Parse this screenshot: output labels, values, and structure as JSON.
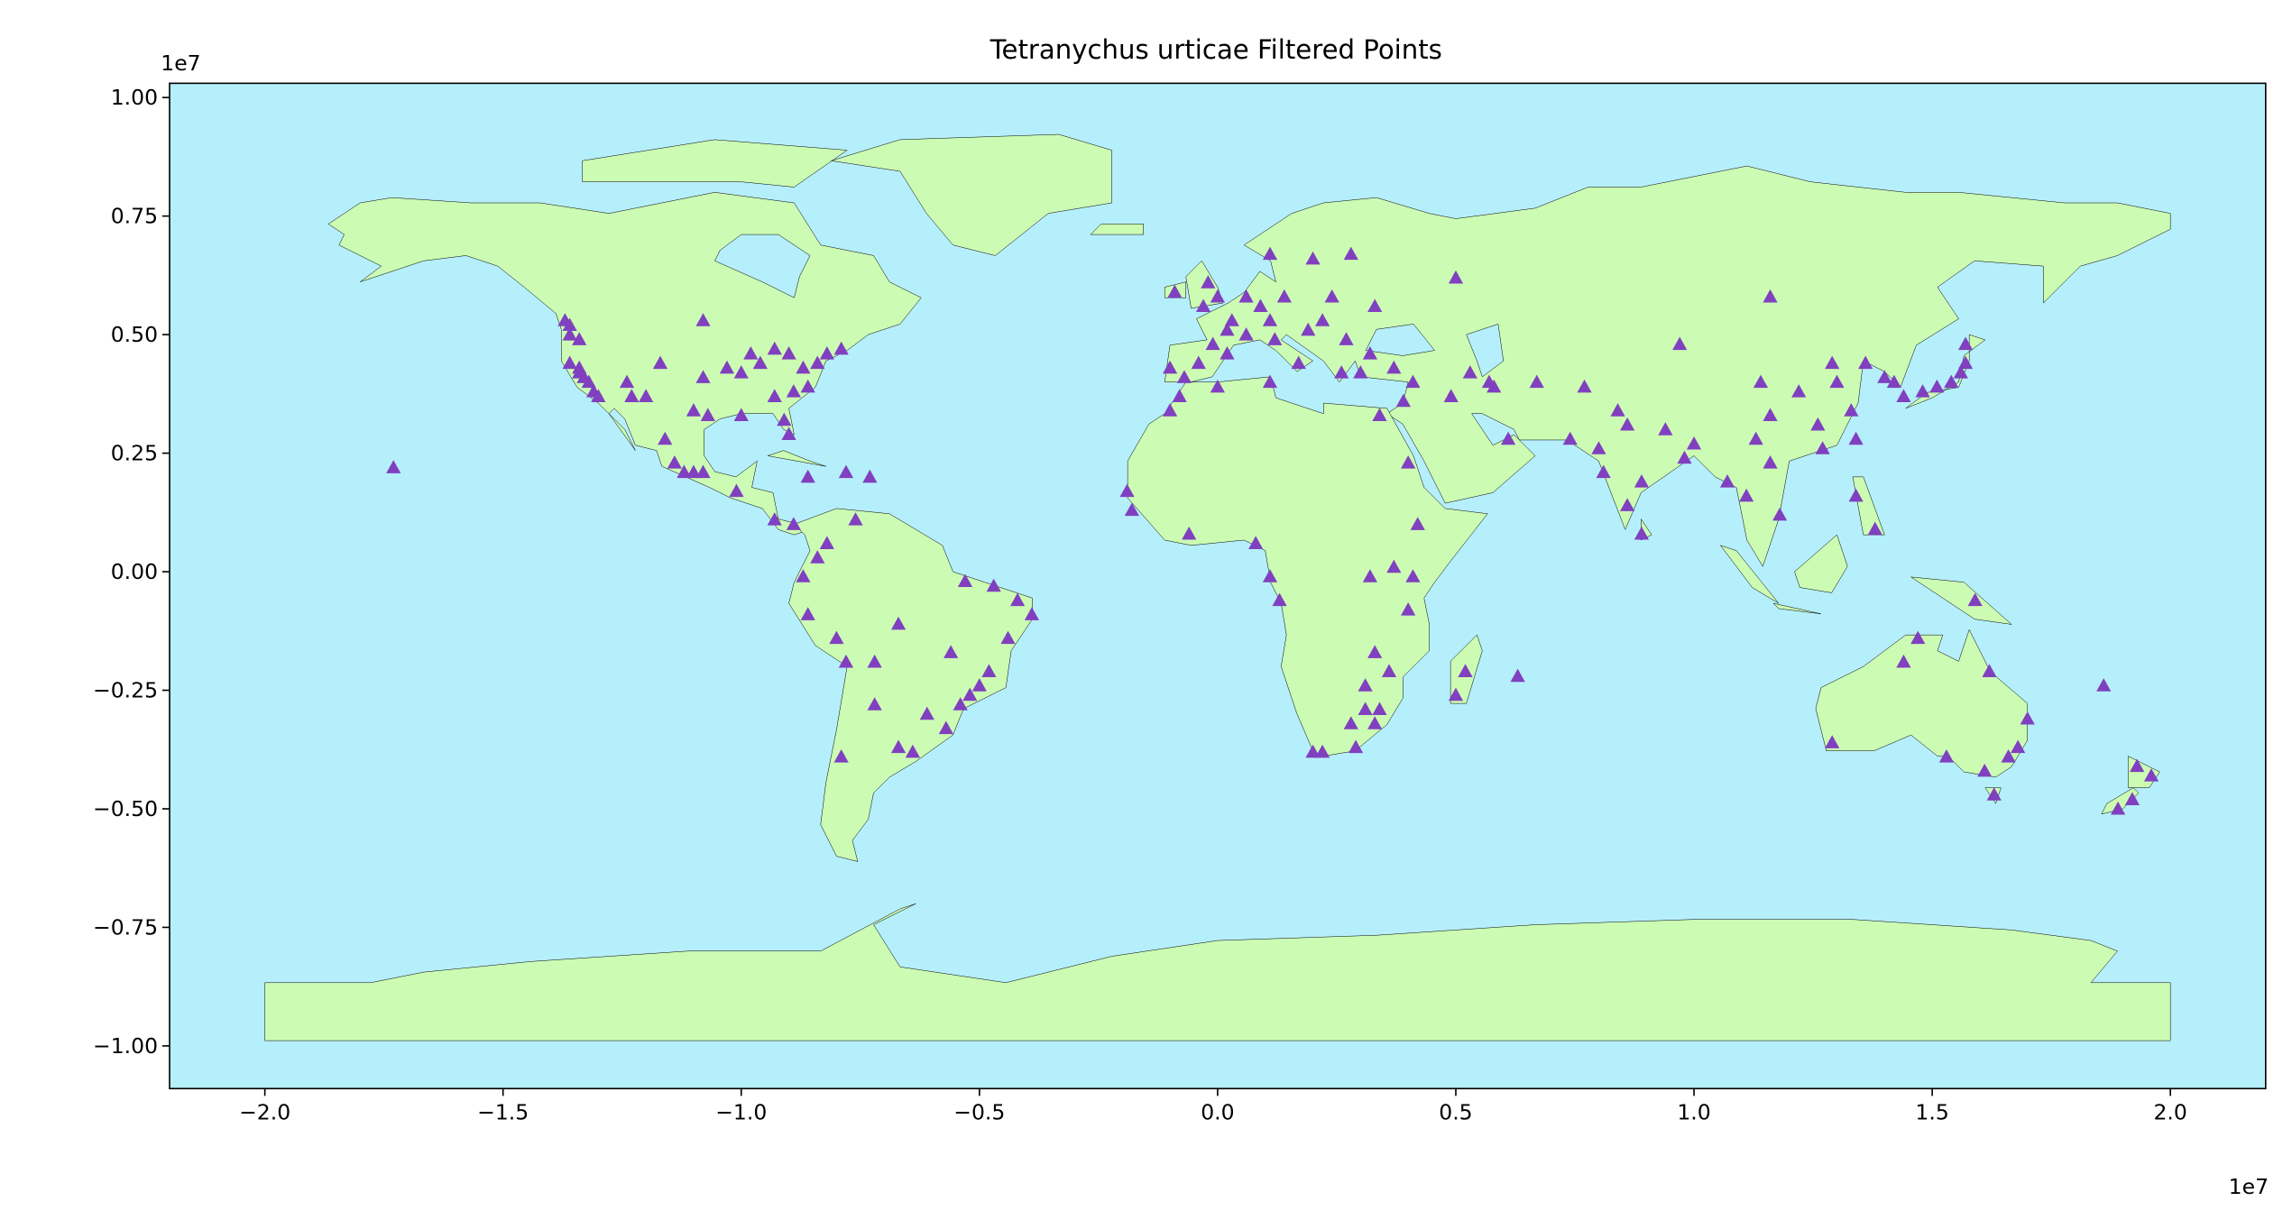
{
  "chart_data": {
    "type": "scatter",
    "title": "Tetranychus urticae Filtered Points",
    "x_offset_label": "1e7",
    "y_offset_label": "1e7",
    "color": "#8040bf",
    "marker": "triangle",
    "background": "#b6effc",
    "land_color": "#ccfcb4",
    "xlim": [
      -2.2,
      2.2
    ],
    "ylim": [
      -1.09,
      1.03
    ],
    "xticks": [
      {
        "value": -2.0,
        "label": "−2.0"
      },
      {
        "value": -1.5,
        "label": "−1.5"
      },
      {
        "value": -1.0,
        "label": "−1.0"
      },
      {
        "value": -0.5,
        "label": "−0.5"
      },
      {
        "value": 0.0,
        "label": "0.0"
      },
      {
        "value": 0.5,
        "label": "0.5"
      },
      {
        "value": 1.0,
        "label": "1.0"
      },
      {
        "value": 1.5,
        "label": "1.5"
      },
      {
        "value": 2.0,
        "label": "2.0"
      }
    ],
    "yticks": [
      {
        "value": -1.0,
        "label": "−1.00"
      },
      {
        "value": -0.75,
        "label": "−0.75"
      },
      {
        "value": -0.5,
        "label": "−0.50"
      },
      {
        "value": -0.25,
        "label": "−0.25"
      },
      {
        "value": 0.0,
        "label": "0.00"
      },
      {
        "value": 0.25,
        "label": "0.25"
      },
      {
        "value": 0.5,
        "label": "0.50"
      },
      {
        "value": 0.75,
        "label": "0.75"
      },
      {
        "value": 1.0,
        "label": "1.00"
      }
    ],
    "x": [
      -1.37,
      -1.36,
      -1.36,
      -1.34,
      -1.36,
      -1.34,
      -1.33,
      -1.32,
      -1.31,
      -1.3,
      -1.34,
      -1.24,
      -1.23,
      -1.2,
      -1.17,
      -1.08,
      -1.03,
      -1.0,
      -0.98,
      -0.96,
      -0.93,
      -0.9,
      -0.87,
      -0.84,
      -0.82,
      -0.79,
      -0.86,
      -0.89,
      -0.93,
      -0.91,
      -0.9,
      -1.0,
      -1.07,
      -1.1,
      -1.08,
      -1.14,
      -1.12,
      -1.1,
      -1.08,
      -1.16,
      -1.01,
      -0.93,
      -0.89,
      -0.86,
      -0.78,
      -0.73,
      -1.73,
      -0.82,
      -0.84,
      -0.87,
      -0.86,
      -0.8,
      -0.78,
      -0.72,
      -0.67,
      -0.53,
      -0.47,
      -0.42,
      -0.39,
      -0.44,
      -0.48,
      -0.5,
      -0.52,
      -0.54,
      -0.57,
      -0.61,
      -0.64,
      -0.67,
      -0.72,
      -0.79,
      -0.56,
      -0.76,
      -0.1,
      -0.04,
      -0.07,
      0.02,
      -0.01,
      0.02,
      0.06,
      0.03,
      -0.03,
      0.0,
      -0.02,
      0.06,
      0.09,
      0.11,
      0.14,
      0.12,
      0.17,
      0.19,
      0.22,
      0.27,
      0.26,
      0.3,
      0.32,
      0.37,
      0.24,
      0.2,
      0.11,
      0.28,
      0.33,
      0.5,
      -0.09,
      -0.1,
      -0.08,
      0.0,
      0.11,
      0.34,
      0.39,
      0.41,
      0.49,
      0.58,
      0.53,
      0.61,
      0.57,
      0.67,
      0.77,
      -0.19,
      -0.18,
      -0.06,
      0.08,
      0.11,
      0.13,
      0.32,
      0.37,
      0.41,
      0.4,
      0.33,
      0.31,
      0.34,
      0.31,
      0.28,
      0.22,
      0.2,
      0.29,
      0.33,
      0.36,
      0.5,
      0.52,
      0.63,
      0.42,
      0.4,
      0.8,
      0.81,
      0.86,
      0.86,
      0.89,
      0.98,
      1.0,
      0.94,
      0.84,
      0.74,
      0.89,
      1.07,
      1.11,
      1.18,
      1.16,
      1.27,
      1.26,
      1.22,
      1.16,
      1.3,
      1.33,
      1.34,
      1.4,
      1.42,
      1.44,
      1.48,
      1.51,
      1.54,
      1.56,
      1.57,
      1.57,
      1.36,
      1.29,
      1.14,
      1.13,
      1.34,
      1.38,
      1.16,
      0.97,
      1.29,
      1.47,
      1.44,
      1.53,
      1.61,
      1.63,
      1.66,
      1.68,
      1.7,
      1.62,
      1.59,
      1.86,
      1.93,
      1.96,
      1.92,
      1.89
    ],
    "values": [
      0.53,
      0.52,
      0.5,
      0.49,
      0.44,
      0.42,
      0.41,
      0.4,
      0.38,
      0.37,
      0.43,
      0.4,
      0.37,
      0.37,
      0.44,
      0.41,
      0.43,
      0.42,
      0.46,
      0.44,
      0.47,
      0.46,
      0.43,
      0.44,
      0.46,
      0.47,
      0.39,
      0.38,
      0.37,
      0.32,
      0.29,
      0.33,
      0.33,
      0.34,
      0.53,
      0.23,
      0.21,
      0.21,
      0.21,
      0.28,
      0.17,
      0.11,
      0.1,
      0.2,
      0.21,
      0.2,
      0.22,
      0.06,
      0.03,
      -0.01,
      -0.09,
      -0.14,
      -0.19,
      -0.19,
      -0.11,
      -0.02,
      -0.03,
      -0.06,
      -0.09,
      -0.14,
      -0.21,
      -0.24,
      -0.26,
      -0.28,
      -0.33,
      -0.3,
      -0.38,
      -0.37,
      -0.28,
      -0.39,
      -0.17,
      0.11,
      0.43,
      0.44,
      0.41,
      0.46,
      0.48,
      0.51,
      0.5,
      0.53,
      0.56,
      0.58,
      0.61,
      0.58,
      0.56,
      0.53,
      0.58,
      0.49,
      0.44,
      0.51,
      0.53,
      0.49,
      0.42,
      0.42,
      0.46,
      0.43,
      0.58,
      0.66,
      0.67,
      0.67,
      0.56,
      0.62,
      0.59,
      0.34,
      0.37,
      0.39,
      0.4,
      0.33,
      0.36,
      0.4,
      0.37,
      0.39,
      0.42,
      0.28,
      0.4,
      0.4,
      0.39,
      0.17,
      0.13,
      0.08,
      0.06,
      -0.01,
      -0.06,
      -0.01,
      0.01,
      -0.01,
      -0.08,
      -0.17,
      -0.24,
      -0.29,
      -0.29,
      -0.32,
      -0.38,
      -0.38,
      -0.37,
      -0.32,
      -0.21,
      -0.26,
      -0.21,
      -0.22,
      0.1,
      0.23,
      0.26,
      0.21,
      0.31,
      0.14,
      0.19,
      0.24,
      0.27,
      0.3,
      0.34,
      0.28,
      0.08,
      0.19,
      0.16,
      0.12,
      0.23,
      0.26,
      0.31,
      0.38,
      0.33,
      0.4,
      0.34,
      0.28,
      0.41,
      0.4,
      0.37,
      0.38,
      0.39,
      0.4,
      0.42,
      0.44,
      0.48,
      0.44,
      0.44,
      0.4,
      0.28,
      0.16,
      0.09,
      0.58,
      0.48,
      -0.36,
      -0.14,
      -0.19,
      -0.39,
      -0.42,
      -0.47,
      -0.39,
      -0.37,
      -0.31,
      -0.21,
      -0.06,
      -0.24,
      -0.41,
      -0.43,
      -0.48,
      -0.5
    ]
  }
}
